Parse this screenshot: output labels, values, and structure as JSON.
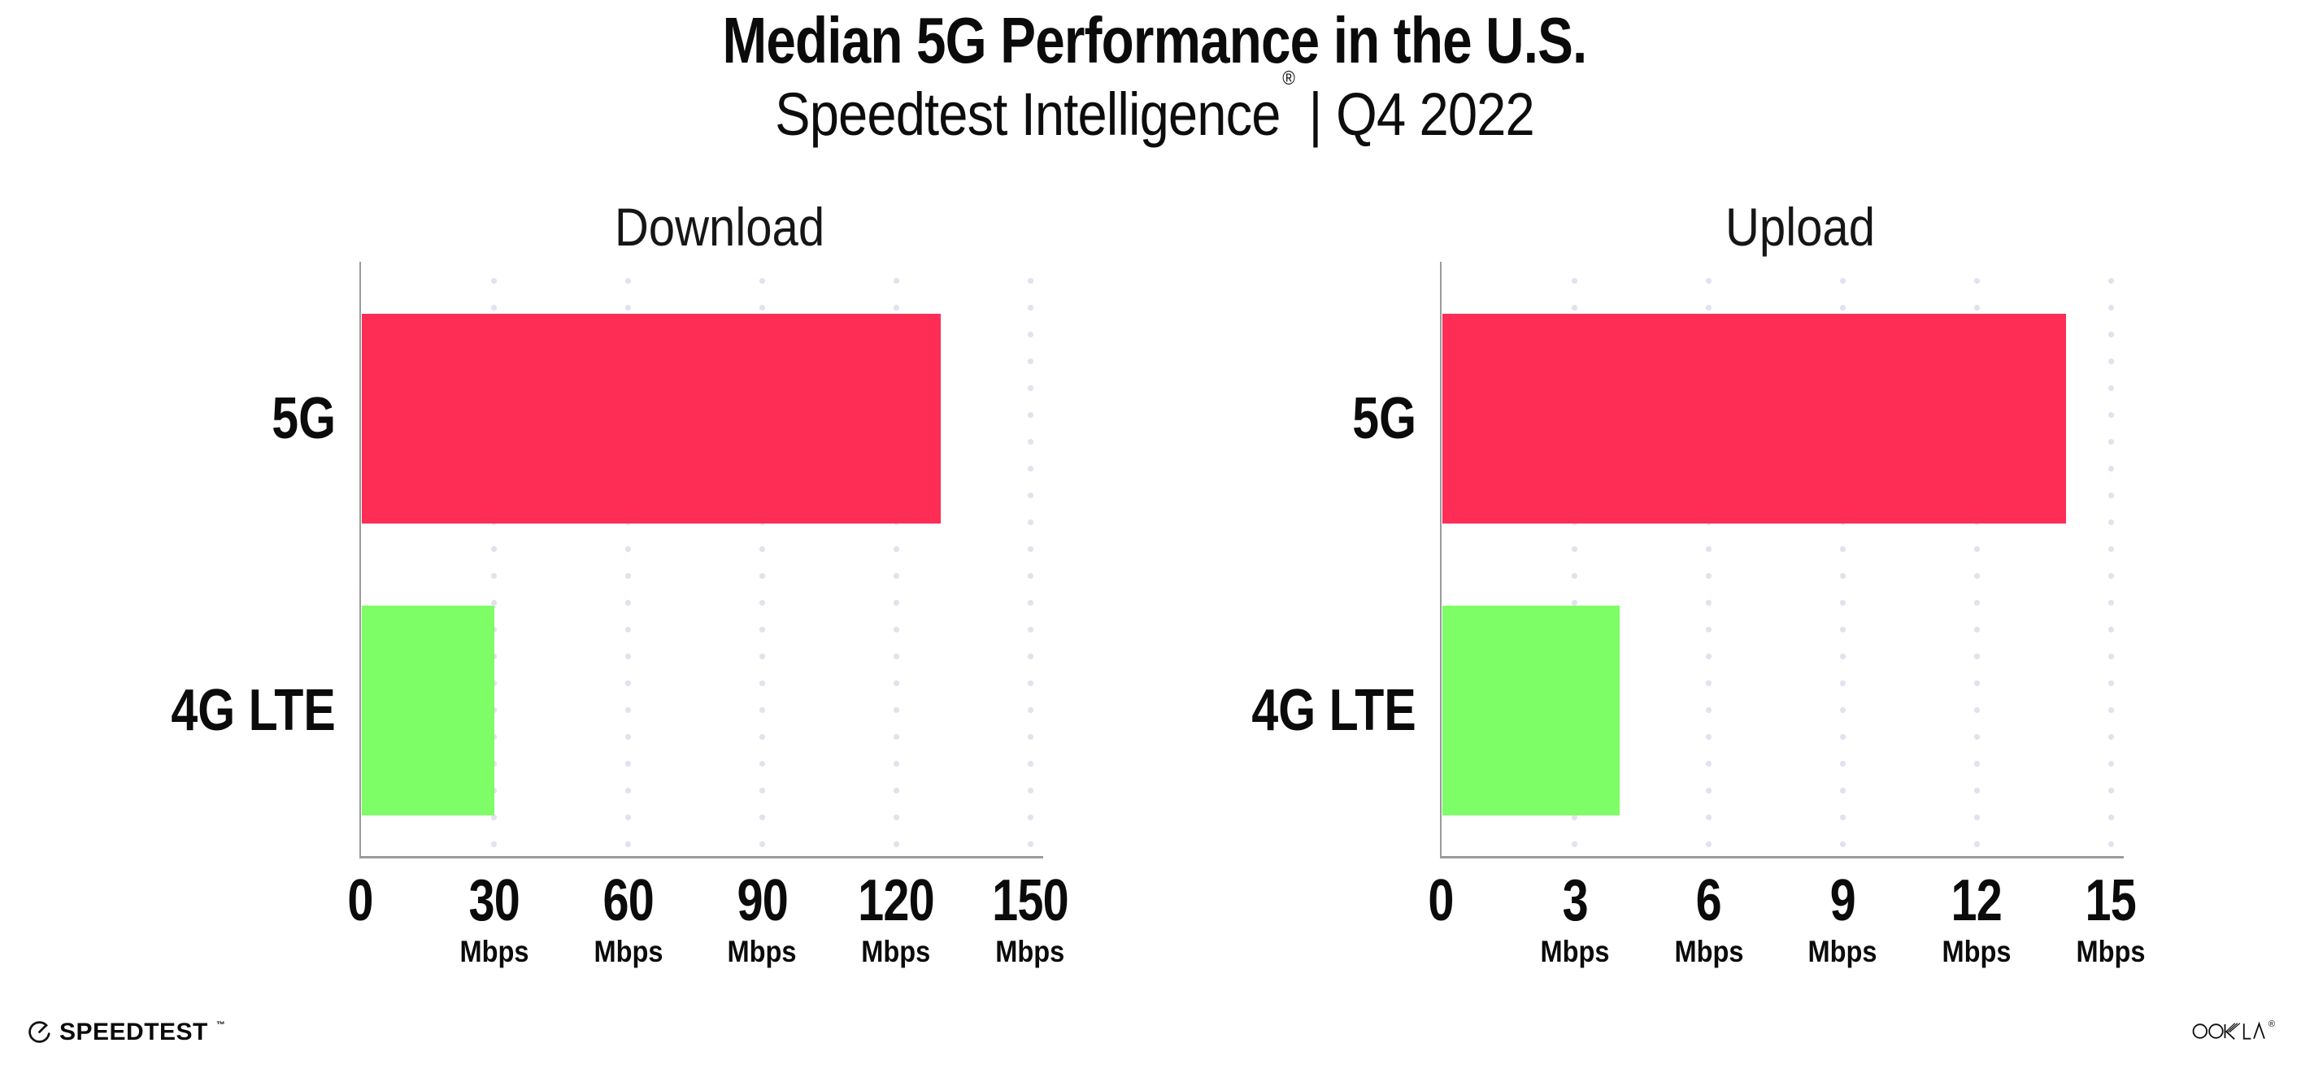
{
  "header": {
    "title": "Median 5G Performance in the U.S.",
    "subtitle_brand": "Speedtest Intelligence",
    "subtitle_reg": "®",
    "subtitle_sep": "|",
    "subtitle_period": "Q4 2022"
  },
  "chart_data": [
    {
      "type": "bar",
      "orientation": "horizontal",
      "title": "Download",
      "categories": [
        "5G",
        "4G LTE"
      ],
      "values": [
        130,
        30
      ],
      "unit": "Mbps",
      "xlim": [
        0,
        150
      ],
      "xticks": [
        0,
        30,
        60,
        90,
        120,
        150
      ],
      "grid": "dotted-vertical",
      "legend": "none",
      "bar_colors": [
        "#FD2D56",
        "#7DFD66"
      ]
    },
    {
      "type": "bar",
      "orientation": "horizontal",
      "title": "Upload",
      "categories": [
        "5G",
        "4G LTE"
      ],
      "values": [
        14,
        4
      ],
      "unit": "Mbps",
      "xlim": [
        0,
        15
      ],
      "xticks": [
        0,
        3,
        6,
        9,
        12,
        15
      ],
      "grid": "dotted-vertical",
      "legend": "none",
      "bar_colors": [
        "#FD2D56",
        "#7DFD66"
      ]
    }
  ],
  "footer": {
    "speedtest_label": "SPEEDTEST",
    "speedtest_tm": "™",
    "ookla_label": "OOKLA",
    "ookla_reg": "®"
  },
  "colors": {
    "bar_5g": "#FD2D56",
    "bar_4g_lte": "#7DFD66",
    "axis": "#9B9B9B",
    "gridline_dot": "#E2E2EE",
    "text": "#0B0B0B"
  }
}
